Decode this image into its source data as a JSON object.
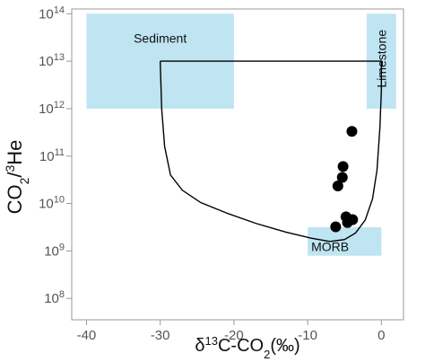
{
  "chart_data": {
    "type": "scatter",
    "x_axis": {
      "label_pre": "δ",
      "label_sup": "13",
      "label_mid": "C-CO",
      "label_sub": "2",
      "label_post": "(‰)",
      "lim": [
        -42,
        3
      ],
      "ticks": [
        -40,
        -30,
        -20,
        -10,
        0
      ],
      "tick_labels": [
        "-40",
        "-30",
        "-20",
        "-10",
        "0"
      ]
    },
    "y_axis": {
      "label_pre": "CO",
      "label_sub": "2",
      "label_mid": "/",
      "label_sup": "3",
      "label_post": "He",
      "scale": "log",
      "lim_log10": [
        7.55,
        14.1
      ],
      "ticks_log10": [
        8,
        9,
        10,
        11,
        12,
        13,
        14
      ],
      "tick_labels": [
        "10",
        "10",
        "10",
        "10",
        "10",
        "10",
        "10"
      ],
      "tick_exponents": [
        "8",
        "9",
        "10",
        "11",
        "12",
        "13",
        "14"
      ]
    },
    "grid": false,
    "fields": [
      {
        "name": "Sediment",
        "x": [
          -40,
          -20
        ],
        "y_log10": [
          12,
          14
        ],
        "color": "#bfe4f2"
      },
      {
        "name": "Limestone",
        "x": [
          -2,
          2
        ],
        "y_log10": [
          12,
          14
        ],
        "color": "#bfe4f2"
      },
      {
        "name": "MORB",
        "x": [
          -10,
          0
        ],
        "y_log10": [
          8.9,
          9.5
        ],
        "color": "#bfe4f2"
      }
    ],
    "mixing_curve": {
      "x": [
        -30,
        -29.8,
        -29.4,
        -28.6,
        -27,
        -24.5,
        -21,
        -17,
        -13,
        -9.5,
        -7,
        -5,
        -3.5,
        -2.2,
        -1.2,
        -0.6,
        -0.2,
        0,
        0
      ],
      "y_log10": [
        13,
        12,
        11.2,
        10.6,
        10.28,
        10.02,
        9.8,
        9.58,
        9.4,
        9.27,
        9.2,
        9.24,
        9.38,
        9.65,
        10.1,
        10.7,
        11.6,
        12.4,
        13
      ],
      "top_line_y_log10": 13
    },
    "series": [
      {
        "marker": "filled-circle",
        "color": "#000000",
        "points": [
          {
            "x": -4.0,
            "y_log10": 11.52
          },
          {
            "x": -5.2,
            "y_log10": 10.78
          },
          {
            "x": -5.3,
            "y_log10": 10.55
          },
          {
            "x": -5.9,
            "y_log10": 10.37
          },
          {
            "x": -4.8,
            "y_log10": 9.72
          },
          {
            "x": -3.9,
            "y_log10": 9.66
          },
          {
            "x": -4.6,
            "y_log10": 9.6
          },
          {
            "x": -6.2,
            "y_log10": 9.51
          }
        ]
      }
    ],
    "colors": {
      "field": "#bfe4f2",
      "curve": "#000000",
      "points": "#000000",
      "axis": "#999999"
    }
  }
}
